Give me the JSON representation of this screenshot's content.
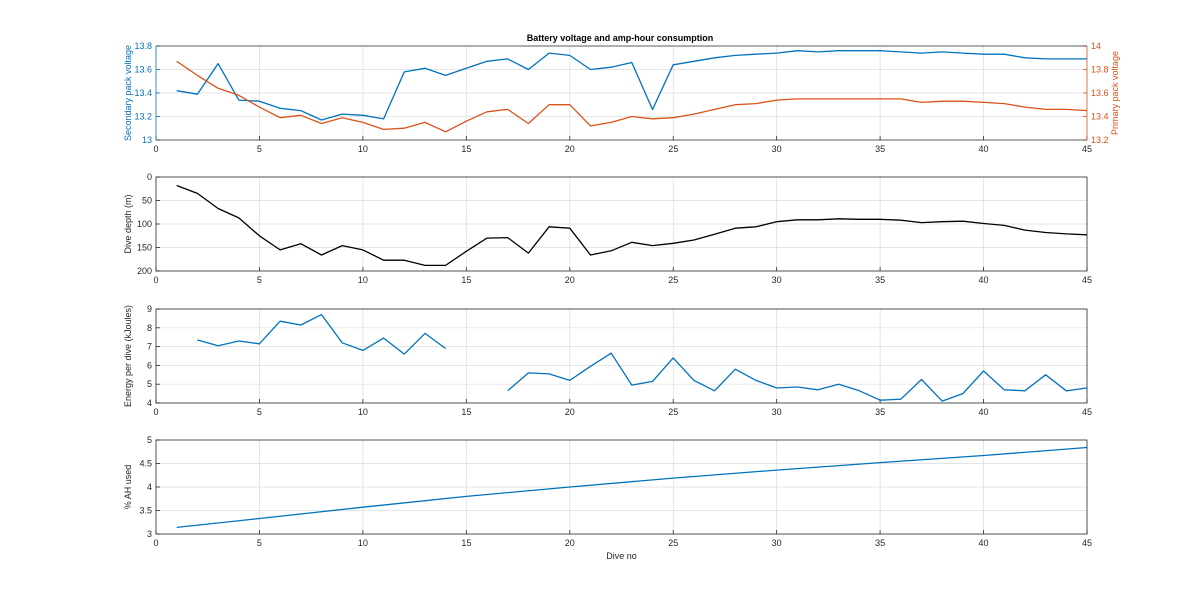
{
  "figure_title": "Battery voltage and amp-hour consumption",
  "colors": {
    "blue": "#0072BD",
    "orange": "#D95319",
    "black": "#000000",
    "axis": "#262626",
    "grid": "#dcdcdc"
  },
  "chart_data": [
    {
      "type": "line",
      "title": "Battery voltage and amp-hour consumption",
      "xlabel": "",
      "ylabel": "Secondary pack voltage",
      "y2label": "Primary pack voltage",
      "xlim": [
        0,
        45
      ],
      "ylim": [
        13,
        13.8
      ],
      "y2lim": [
        13.2,
        14
      ],
      "xticks": [
        "0",
        "5",
        "10",
        "15",
        "20",
        "25",
        "30",
        "35",
        "40",
        "45"
      ],
      "yticks": [
        "13",
        "13.2",
        "13.4",
        "13.6",
        "13.8"
      ],
      "y2ticks": [
        "13.2",
        "13.4",
        "13.6",
        "13.8",
        "14"
      ],
      "grid": true,
      "series": [
        {
          "axis": "left",
          "color": "#0072BD",
          "x": [
            1,
            2,
            3,
            4,
            5,
            6,
            7,
            8,
            9,
            10,
            11,
            12,
            13,
            14,
            15,
            16,
            17,
            18,
            19,
            20,
            21,
            22,
            23,
            24,
            25,
            26,
            27,
            28,
            29,
            30,
            31,
            32,
            33,
            34,
            35,
            36,
            37,
            38,
            39,
            40,
            41,
            42,
            43,
            44,
            45
          ],
          "values": [
            13.42,
            13.39,
            13.65,
            13.34,
            13.33,
            13.27,
            13.25,
            13.17,
            13.22,
            13.21,
            13.18,
            13.58,
            13.61,
            13.55,
            13.61,
            13.67,
            13.69,
            13.6,
            13.74,
            13.72,
            13.6,
            13.62,
            13.66,
            13.26,
            13.64,
            13.67,
            13.7,
            13.72,
            13.73,
            13.74,
            13.76,
            13.75,
            13.76,
            13.76,
            13.76,
            13.75,
            13.74,
            13.75,
            13.74,
            13.73,
            13.73,
            13.7,
            13.69,
            13.69,
            13.69
          ]
        },
        {
          "axis": "right",
          "color": "#D95319",
          "x": [
            1,
            2,
            3,
            4,
            5,
            6,
            7,
            8,
            9,
            10,
            11,
            12,
            13,
            14,
            15,
            16,
            17,
            18,
            19,
            20,
            21,
            22,
            23,
            24,
            25,
            26,
            27,
            28,
            29,
            30,
            31,
            32,
            33,
            34,
            35,
            36,
            37,
            38,
            39,
            40,
            41,
            42,
            43,
            44,
            45
          ],
          "values": [
            13.87,
            13.75,
            13.64,
            13.58,
            13.48,
            13.39,
            13.41,
            13.34,
            13.39,
            13.35,
            13.29,
            13.3,
            13.35,
            13.27,
            13.36,
            13.44,
            13.46,
            13.34,
            13.5,
            13.5,
            13.32,
            13.35,
            13.4,
            13.38,
            13.39,
            13.42,
            13.46,
            13.5,
            13.51,
            13.54,
            13.55,
            13.55,
            13.55,
            13.55,
            13.55,
            13.55,
            13.52,
            13.53,
            13.53,
            13.52,
            13.51,
            13.48,
            13.46,
            13.46,
            13.45
          ]
        }
      ]
    },
    {
      "type": "line",
      "title": "",
      "xlabel": "",
      "ylabel": "Dive depth (m)",
      "xlim": [
        0,
        45
      ],
      "ylim": [
        200,
        0
      ],
      "y_reversed": true,
      "xticks": [
        "0",
        "5",
        "10",
        "15",
        "20",
        "25",
        "30",
        "35",
        "40",
        "45"
      ],
      "yticks": [
        "0",
        "50",
        "100",
        "150",
        "200"
      ],
      "grid": true,
      "series": [
        {
          "color": "#000000",
          "x": [
            1,
            2,
            3,
            4,
            5,
            6,
            7,
            8,
            9,
            10,
            11,
            12,
            13,
            14,
            15,
            16,
            17,
            18,
            19,
            20,
            21,
            22,
            23,
            24,
            25,
            26,
            27,
            28,
            29,
            30,
            31,
            32,
            33,
            34,
            35,
            36,
            37,
            38,
            39,
            40,
            41,
            42,
            43,
            44,
            45
          ],
          "values": [
            18,
            35,
            67,
            87,
            125,
            155,
            142,
            166,
            146,
            155,
            177,
            177,
            188,
            188,
            158,
            130,
            129,
            162,
            106,
            109,
            166,
            157,
            139,
            146,
            141,
            134,
            122,
            109,
            106,
            95,
            91,
            91,
            89,
            90,
            90,
            92,
            97,
            95,
            94,
            99,
            103,
            113,
            118,
            121,
            123
          ]
        }
      ]
    },
    {
      "type": "line",
      "title": "",
      "xlabel": "",
      "ylabel": "Energy per dive (kJoules)",
      "xlim": [
        0,
        45
      ],
      "ylim": [
        4,
        9
      ],
      "xticks": [
        "0",
        "5",
        "10",
        "15",
        "20",
        "25",
        "30",
        "35",
        "40",
        "45"
      ],
      "yticks": [
        "4",
        "5",
        "6",
        "7",
        "8",
        "9"
      ],
      "grid": true,
      "series": [
        {
          "color": "#0072BD",
          "x": [
            2,
            3,
            4,
            5,
            6,
            7,
            8,
            9,
            10,
            11,
            12,
            13,
            14
          ],
          "values": [
            7.35,
            7.05,
            7.3,
            7.15,
            8.35,
            8.15,
            8.7,
            7.2,
            6.8,
            7.45,
            6.6,
            7.7,
            6.9
          ]
        },
        {
          "color": "#0072BD",
          "x": [
            17,
            18,
            19,
            20,
            21,
            22,
            23,
            24,
            25,
            26,
            27,
            28,
            29,
            30,
            31,
            32,
            33,
            34,
            35,
            36,
            37,
            38,
            39,
            40,
            41,
            42,
            43,
            44,
            45
          ],
          "values": [
            4.65,
            5.6,
            5.55,
            5.2,
            5.95,
            6.65,
            4.95,
            5.15,
            6.4,
            5.2,
            4.65,
            5.8,
            5.2,
            4.8,
            4.85,
            4.7,
            5.0,
            4.65,
            4.15,
            4.2,
            5.25,
            4.1,
            4.5,
            5.7,
            4.7,
            4.65,
            5.5,
            4.65,
            4.8
          ]
        }
      ]
    },
    {
      "type": "line",
      "title": "",
      "xlabel": "Dive no",
      "ylabel": "% AH used",
      "xlim": [
        0,
        45
      ],
      "ylim": [
        3,
        5
      ],
      "xticks": [
        "0",
        "5",
        "10",
        "15",
        "20",
        "25",
        "30",
        "35",
        "40",
        "45"
      ],
      "yticks": [
        "3",
        "3.5",
        "4",
        "4.5",
        "5"
      ],
      "grid": true,
      "series": [
        {
          "color": "#0072BD",
          "x": [
            1,
            5,
            10,
            15,
            20,
            25,
            30,
            35,
            40,
            45
          ],
          "values": [
            3.14,
            3.33,
            3.57,
            3.8,
            4.0,
            4.19,
            4.36,
            4.52,
            4.67,
            4.84
          ]
        }
      ]
    }
  ]
}
